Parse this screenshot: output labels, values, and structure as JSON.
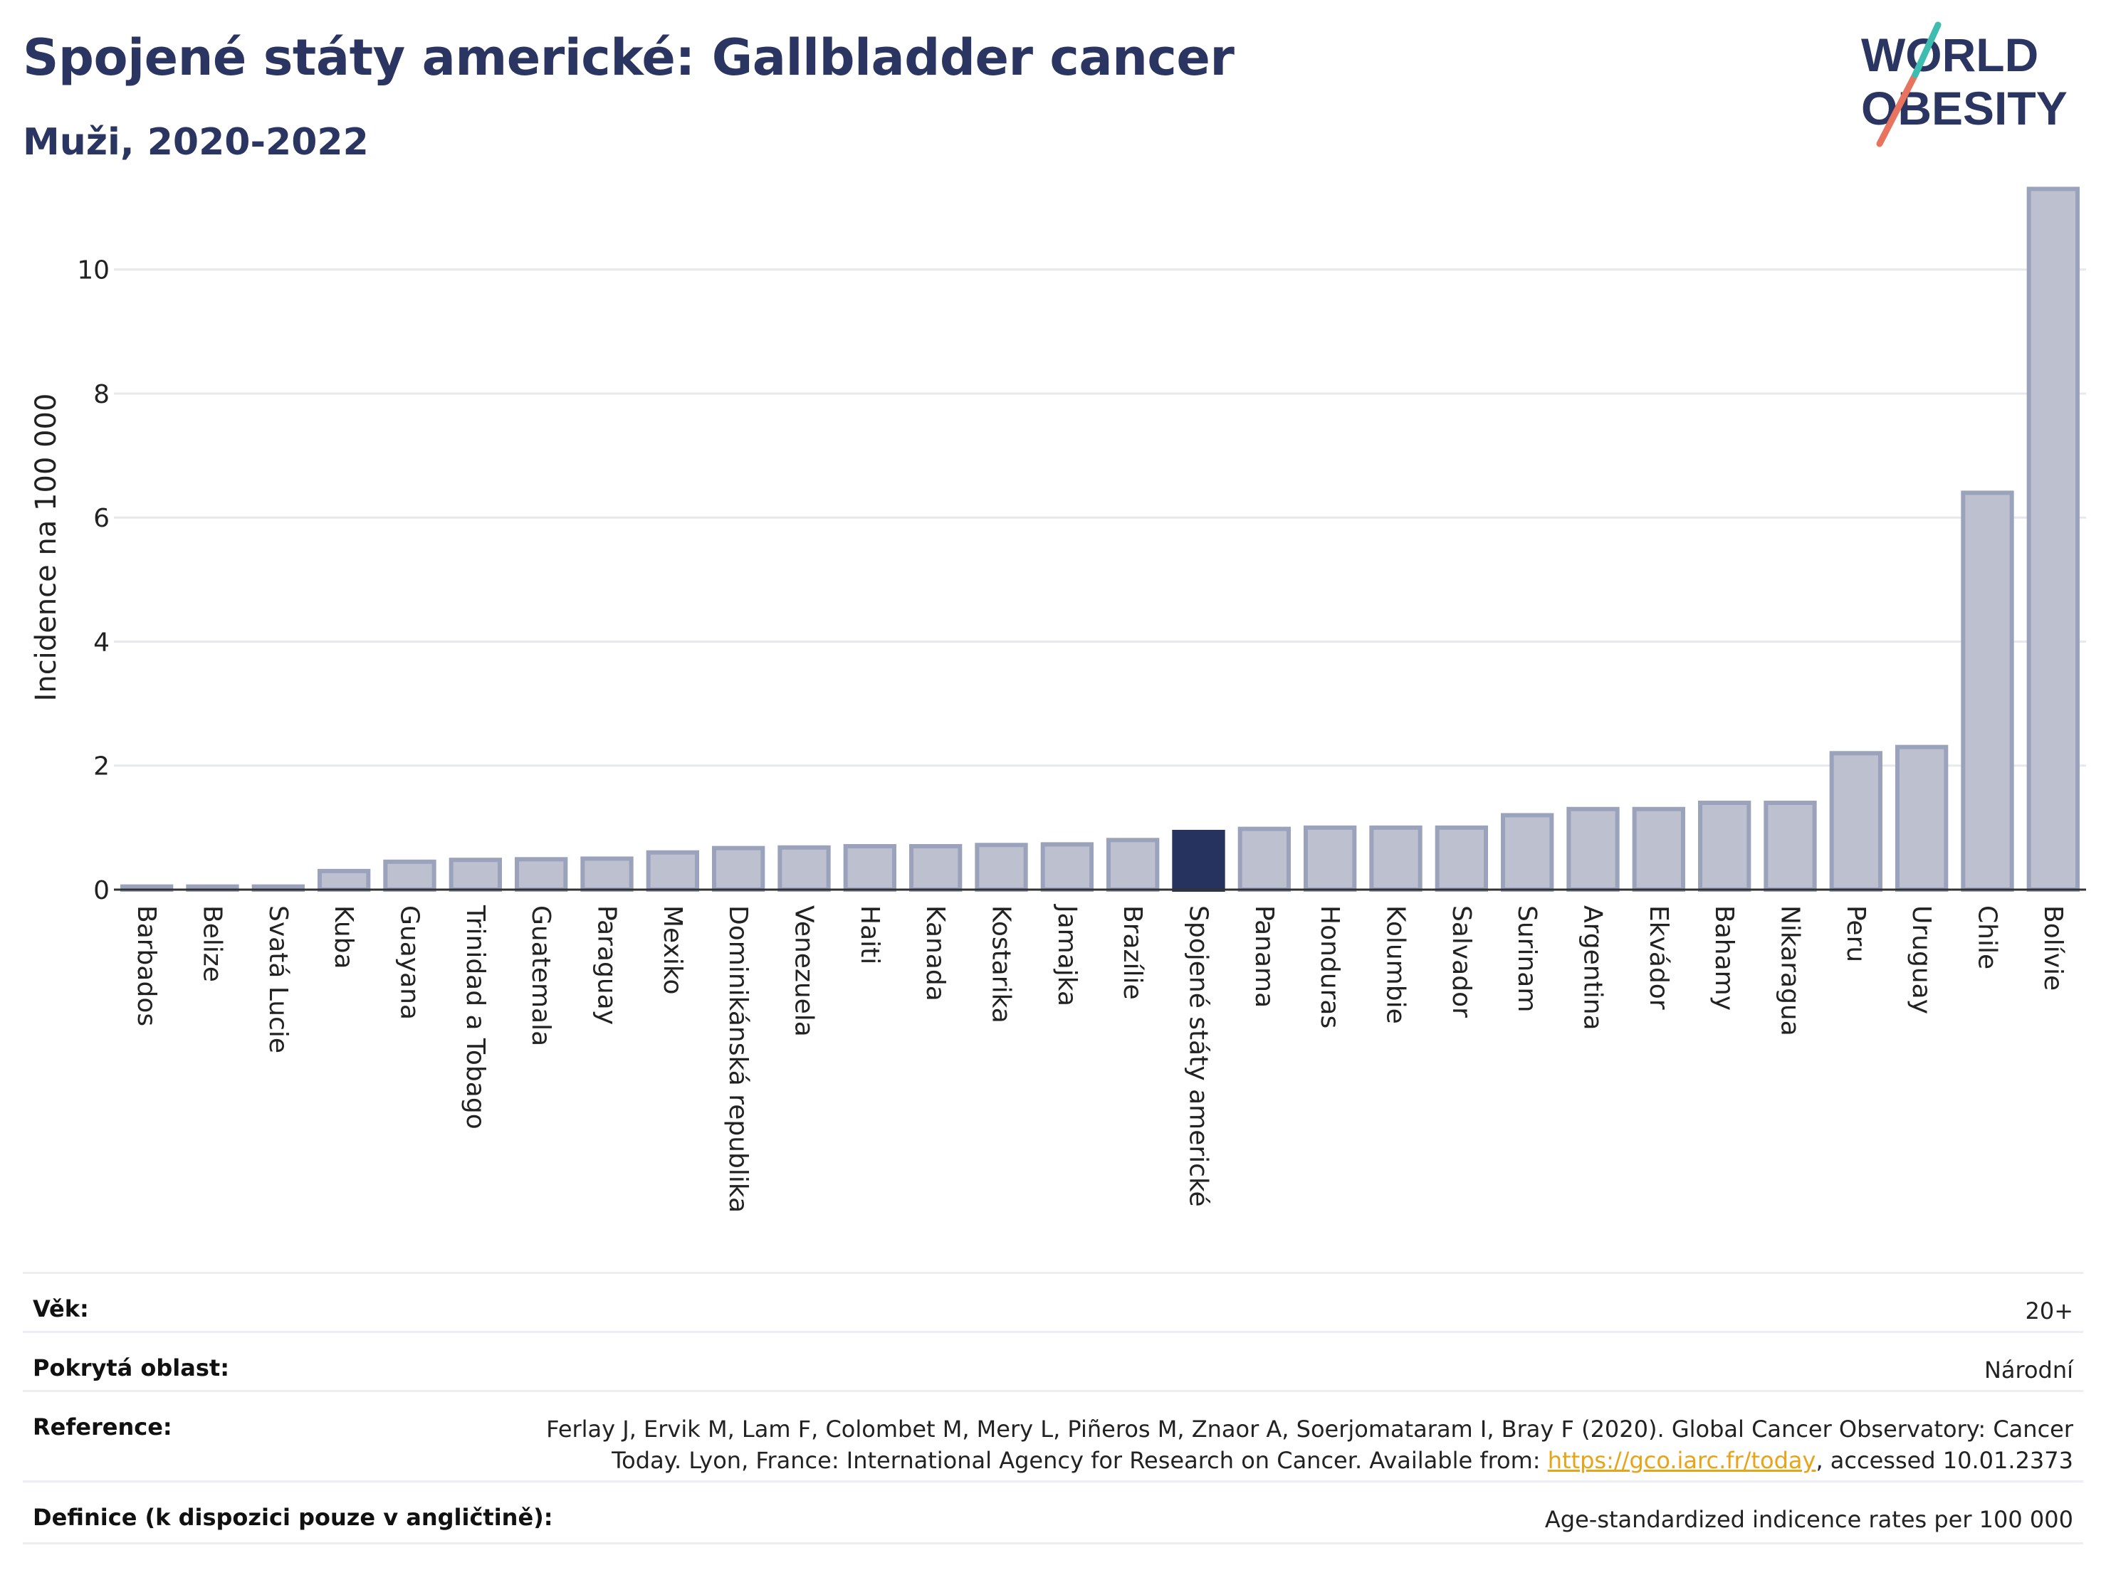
{
  "header": {
    "title": "Spojené státy americké: Gallbladder cancer",
    "subtitle": "Muži, 2020-2022"
  },
  "logo": {
    "line1": "WORLD",
    "line2": "OBESITY",
    "name": "world-obesity-logo"
  },
  "colors": {
    "bar": "#bcc0cf",
    "bar_border": "#9ba2bb",
    "highlight": "#26335f",
    "title": "#2b3561",
    "grid": "#e6e8ee",
    "link": "#e8a317"
  },
  "chart_data": {
    "type": "bar",
    "ylabel": "Incidence na 100 000",
    "xlabel": "",
    "ylim": [
      0,
      11.5
    ],
    "yticks": [
      0,
      2,
      4,
      6,
      8,
      10
    ],
    "grid": true,
    "highlight": "Spojené státy americké",
    "categories": [
      "Barbados",
      "Belize",
      "Svatá Lucie",
      "Kuba",
      "Guayana",
      "Trinidad a Tobago",
      "Guatemala",
      "Paraguay",
      "Mexiko",
      "Dominikánská republika",
      "Venezuela",
      "Haiti",
      "Kanada",
      "Kostarika",
      "Jamajka",
      "Brazílie",
      "Spojené státy americké",
      "Panama",
      "Honduras",
      "Kolumbie",
      "Salvador",
      "Surinam",
      "Argentina",
      "Ekvádor",
      "Bahamy",
      "Nikaragua",
      "Peru",
      "Uruguay",
      "Chile",
      "Bolívie"
    ],
    "values": [
      0.05,
      0.05,
      0.05,
      0.3,
      0.45,
      0.48,
      0.49,
      0.5,
      0.6,
      0.67,
      0.68,
      0.7,
      0.7,
      0.72,
      0.73,
      0.8,
      0.93,
      0.98,
      1.0,
      1.0,
      1.0,
      1.2,
      1.3,
      1.3,
      1.4,
      1.4,
      2.2,
      2.3,
      6.4,
      11.3
    ]
  },
  "info": [
    {
      "key": "Věk:",
      "value": "20+"
    },
    {
      "key": "Pokrytá oblast:",
      "value": "Národní"
    },
    {
      "key": "Reference:",
      "value_line1": "Ferlay J, Ervik M, Lam F, Colombet M, Mery L, Piñeros M, Znaor A, Soerjomataram I, Bray F (2020). Global Cancer Observatory: Cancer",
      "value_line2_pre": "Today. Lyon, France: International Agency for Research on Cancer. Available from: ",
      "link": "https://gco.iarc.fr/today",
      "value_line2_post": ", accessed 10.01.2373"
    },
    {
      "key": "Definice (k dispozici pouze v angličtině):",
      "value": "Age-standardized indicence rates per 100 000"
    }
  ]
}
